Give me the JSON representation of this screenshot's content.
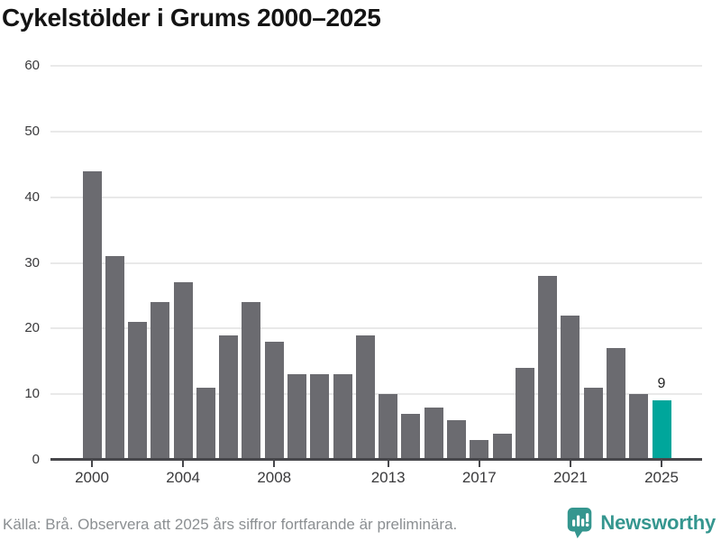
{
  "title": "Cykelstölder i Grums 2000–2025",
  "footer": {
    "source_note": "Källa: Brå. Observera att 2025 års siffror fortfarande är preliminära."
  },
  "branding": {
    "name": "Newsworthy",
    "icon": "bar-chart-speech-bubble-icon"
  },
  "colors": {
    "background": "#ffffff",
    "bar": "#6b6b70",
    "highlight": "#00a69b",
    "grid": "#e9e9e9",
    "axis": "#47474b",
    "title_text": "#141414",
    "tick_text": "#3a3a3c",
    "value_label": "#222222",
    "footer_text": "#8b8f92",
    "brand": "#35968f"
  },
  "chart_data": {
    "type": "bar",
    "title": "Cykelstölder i Grums 2000–2025",
    "categories": [
      2000,
      2001,
      2002,
      2003,
      2004,
      2005,
      2006,
      2007,
      2008,
      2009,
      2010,
      2011,
      2012,
      2013,
      2014,
      2015,
      2016,
      2017,
      2018,
      2019,
      2020,
      2021,
      2022,
      2023,
      2024,
      2025
    ],
    "values": [
      44,
      31,
      21,
      24,
      27,
      11,
      19,
      24,
      18,
      13,
      13,
      13,
      19,
      10,
      7,
      8,
      6,
      3,
      4,
      14,
      28,
      22,
      11,
      17,
      10,
      9
    ],
    "highlight_index": 25,
    "highlight_label": "9",
    "x_ticks": [
      2000,
      2004,
      2008,
      2013,
      2017,
      2021,
      2025
    ],
    "y_ticks": [
      0,
      10,
      20,
      30,
      40,
      50,
      60
    ],
    "ylim": [
      0,
      60
    ],
    "xlabel": "",
    "ylabel": "",
    "grid": "horizontal",
    "legend": "none"
  }
}
